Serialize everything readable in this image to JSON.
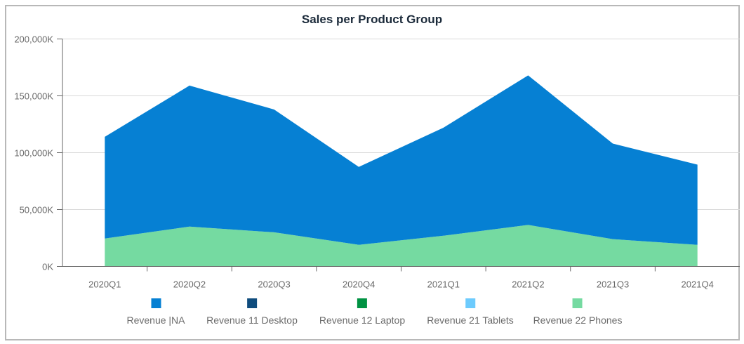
{
  "chart_data": {
    "type": "area",
    "stacked": true,
    "title": "Sales per Product Group",
    "xlabel": "",
    "ylabel": "",
    "categories": [
      "2020Q1",
      "2020Q2",
      "2020Q3",
      "2020Q4",
      "2021Q1",
      "2021Q2",
      "2021Q3",
      "2021Q4"
    ],
    "ylim": [
      0,
      200000
    ],
    "y_unit": "K",
    "yticks": [
      "0K",
      "50,000K",
      "100,000K",
      "150,000K",
      "200,000K"
    ],
    "grid": true,
    "legend_position": "bottom",
    "series": [
      {
        "name": "Revenue |NA",
        "color": "#0680d3",
        "values": [
          89500,
          124000,
          108000,
          68500,
          95000,
          131500,
          84000,
          70500
        ]
      },
      {
        "name": "Revenue 11 Desktop",
        "color": "#0f4c7d",
        "values": [
          0,
          0,
          0,
          0,
          0,
          0,
          0,
          0
        ]
      },
      {
        "name": "Revenue 12 Laptop",
        "color": "#009242",
        "values": [
          0,
          0,
          0,
          0,
          0,
          0,
          0,
          0
        ]
      },
      {
        "name": "Revenue 21 Tablets",
        "color": "#6dcbfd",
        "values": [
          0,
          0,
          0,
          0,
          0,
          0,
          0,
          0
        ]
      },
      {
        "name": "Revenue 22 Phones",
        "color": "#75daa1",
        "values": [
          24500,
          35000,
          30000,
          19000,
          27000,
          36500,
          24000,
          19000
        ]
      }
    ]
  }
}
